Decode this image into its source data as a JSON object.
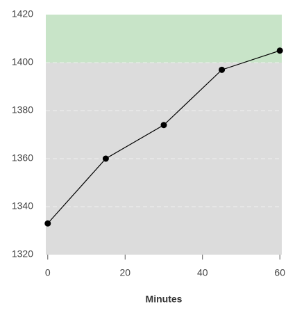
{
  "chart_data": {
    "type": "line",
    "x_label": "Minutes",
    "x": [
      0,
      15,
      30,
      45,
      60
    ],
    "series": [
      {
        "values": [
          1333,
          1360,
          1374,
          1397,
          1405
        ],
        "color": "#000000"
      }
    ],
    "xlim": [
      -0.5,
      60.5
    ],
    "xticks": [
      0,
      20,
      40,
      60
    ],
    "ylim": [
      1320,
      1420
    ],
    "yticks": [
      1320,
      1340,
      1360,
      1380,
      1400,
      1420
    ],
    "bands": [
      {
        "from": 1320,
        "to": 1400,
        "color": "#dcdcdc"
      },
      {
        "from": 1400,
        "to": 1420,
        "color": "#c8e4c8"
      }
    ],
    "grid": true
  }
}
